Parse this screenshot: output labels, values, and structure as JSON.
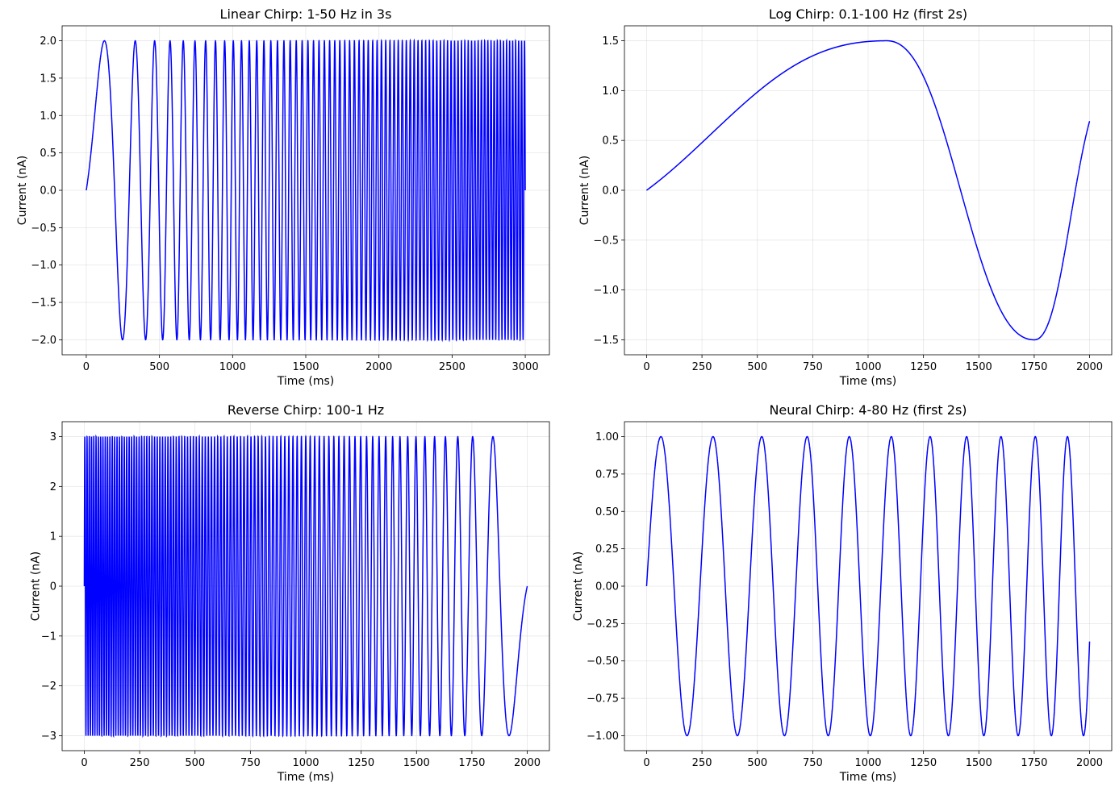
{
  "chart_data": [
    {
      "type": "line",
      "title": "Linear Chirp: 1-50 Hz in 3s",
      "xlabel": "Time (ms)",
      "ylabel": "Current (nA)",
      "xlim": [
        -165,
        3165
      ],
      "ylim": [
        -2.2,
        2.2
      ],
      "xticks": [
        0,
        500,
        1000,
        1500,
        2000,
        2500,
        3000
      ],
      "xtick_labels": [
        "0",
        "500",
        "1000",
        "1500",
        "2000",
        "2500",
        "3000"
      ],
      "yticks": [
        -2.0,
        -1.5,
        -1.0,
        -0.5,
        0.0,
        0.5,
        1.0,
        1.5,
        2.0
      ],
      "ytick_labels": [
        "−2.0",
        "−1.5",
        "−1.0",
        "−0.5",
        "0.0",
        "0.5",
        "1.0",
        "1.5",
        "2.0"
      ],
      "grid": true,
      "color": "#0000ff",
      "signal": {
        "kind": "linear_chirp",
        "amplitude": 2.0,
        "f0_hz": 1,
        "f1_hz": 50,
        "duration_ms": 3000
      },
      "series": [
        {
          "x": [
            0,
            125,
            250,
            340,
            415,
            480,
            570,
            620,
            665,
            3000
          ],
          "y": [
            0.0,
            2.0,
            -2.0,
            2.0,
            -2.0,
            2.0,
            2.0,
            -2.0,
            2.0,
            0.05
          ]
        }
      ]
    },
    {
      "type": "line",
      "title": "Log Chirp: 0.1-100 Hz (first 2s)",
      "xlabel": "Time (ms)",
      "ylabel": "Current (nA)",
      "xlim": [
        -100,
        2100
      ],
      "ylim": [
        -1.65,
        1.65
      ],
      "xticks": [
        0,
        250,
        500,
        750,
        1000,
        1250,
        1500,
        1750,
        2000
      ],
      "xtick_labels": [
        "0",
        "250",
        "500",
        "750",
        "1000",
        "1250",
        "1500",
        "1750",
        "2000"
      ],
      "yticks": [
        -1.5,
        -1.0,
        -0.5,
        0.0,
        0.5,
        1.0,
        1.5
      ],
      "ytick_labels": [
        "−1.5",
        "−1.0",
        "−0.5",
        "0.0",
        "0.5",
        "1.0",
        "1.5"
      ],
      "grid": true,
      "color": "#0000ff",
      "signal": {
        "kind": "log_chirp",
        "amplitude": 1.5,
        "f0_hz": 0.1,
        "f1_hz": 100,
        "duration_ms": 2000
      },
      "series": [
        {
          "x": [
            0,
            250,
            500,
            750,
            1000,
            1085,
            1250,
            1500,
            1750,
            2000
          ],
          "y": [
            0.0,
            0.28,
            0.62,
            1.05,
            1.45,
            1.5,
            1.15,
            -0.15,
            -1.5,
            0.68
          ]
        }
      ]
    },
    {
      "type": "line",
      "title": "Reverse Chirp: 100-1 Hz",
      "xlabel": "Time (ms)",
      "ylabel": "Current (nA)",
      "xlim": [
        -100,
        2100
      ],
      "ylim": [
        -3.3,
        3.3
      ],
      "xticks": [
        0,
        250,
        500,
        750,
        1000,
        1250,
        1500,
        1750,
        2000
      ],
      "xtick_labels": [
        "0",
        "250",
        "500",
        "750",
        "1000",
        "1250",
        "1500",
        "1750",
        "2000"
      ],
      "yticks": [
        -3,
        -2,
        -1,
        0,
        1,
        2,
        3
      ],
      "ytick_labels": [
        "−3",
        "−2",
        "−1",
        "0",
        "1",
        "2",
        "3"
      ],
      "grid": true,
      "color": "#0000ff",
      "signal": {
        "kind": "reverse_chirp",
        "amplitude": 3.0,
        "f0_hz": 100,
        "f1_hz": 1,
        "duration_ms": 2000
      },
      "series": [
        {
          "x": [
            0,
            1840,
            1920,
            2000
          ],
          "y": [
            0.0,
            3.0,
            -3.0,
            0.0
          ]
        }
      ]
    },
    {
      "type": "line",
      "title": "Neural Chirp: 4-80 Hz (first 2s)",
      "xlabel": "Time (ms)",
      "ylabel": "Current (nA)",
      "xlim": [
        -100,
        2100
      ],
      "ylim": [
        -1.1,
        1.1
      ],
      "xticks": [
        0,
        250,
        500,
        750,
        1000,
        1250,
        1500,
        1750,
        2000
      ],
      "xtick_labels": [
        "0",
        "250",
        "500",
        "750",
        "1000",
        "1250",
        "1500",
        "1750",
        "2000"
      ],
      "yticks": [
        -1.0,
        -0.75,
        -0.5,
        -0.25,
        0.0,
        0.25,
        0.5,
        0.75,
        1.0
      ],
      "ytick_labels": [
        "−1.00",
        "−0.75",
        "−0.50",
        "−0.25",
        "0.00",
        "0.25",
        "0.50",
        "0.75",
        "1.00"
      ],
      "grid": true,
      "color": "#0000ff",
      "signal": {
        "kind": "neural_chirp",
        "amplitude": 1.0,
        "f0_hz": 4,
        "f1_hz": 80,
        "duration_ms": 2000
      },
      "series": [
        {
          "x": [
            0,
            65,
            300,
            520,
            725,
            915,
            1105,
            1280,
            1445,
            1600,
            1755,
            1900,
            2000
          ],
          "y": [
            0.0,
            1.0,
            1.0,
            1.0,
            1.0,
            1.0,
            1.0,
            1.0,
            1.0,
            1.0,
            1.0,
            1.0,
            -0.27
          ]
        }
      ]
    }
  ]
}
